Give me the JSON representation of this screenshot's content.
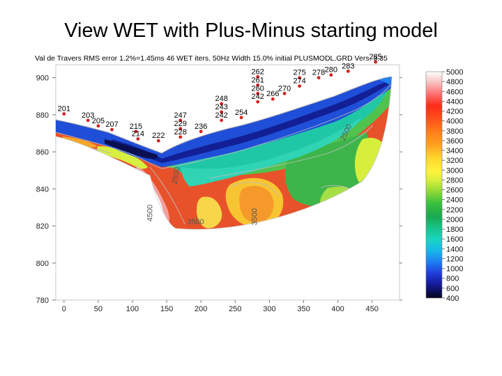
{
  "slide": {
    "title": "View WET with Plus-Minus starting model"
  },
  "chart_data": {
    "type": "heatmap",
    "caption": "Val de Travers RMS error 1.2%=1.45ms 46 WET iters. 50Hz Width 15.0% initial PLUSMODL.GRD Vers. 3.35",
    "x_ticks": [
      0,
      50,
      100,
      150,
      200,
      250,
      300,
      350,
      400,
      450
    ],
    "y_ticks": [
      780,
      800,
      820,
      840,
      860,
      880,
      900
    ],
    "xlim": [
      -12,
      490
    ],
    "ylim": [
      780,
      907
    ],
    "colorbar": {
      "min": 400,
      "max": 5000,
      "ticks": [
        5000,
        4800,
        4600,
        4400,
        4200,
        4000,
        3800,
        3600,
        3400,
        3200,
        3000,
        2800,
        2600,
        2400,
        2200,
        2000,
        1800,
        1600,
        1400,
        1200,
        1000,
        800,
        600,
        400
      ]
    },
    "contour_labels": [
      {
        "text": "2500",
        "x": 167,
        "y": 847,
        "rotate": -80
      },
      {
        "text": "4500",
        "x": 129,
        "y": 827,
        "rotate": -90
      },
      {
        "text": "3500",
        "x": 192,
        "y": 821,
        "rotate": 0
      },
      {
        "text": "3500",
        "x": 282,
        "y": 825,
        "rotate": -90
      },
      {
        "text": "2500",
        "x": 415,
        "y": 870,
        "rotate": -65
      }
    ],
    "receivers": [
      {
        "x": 0,
        "y": 882,
        "label": "201"
      },
      {
        "x": 35,
        "y": 878.5,
        "label": "203"
      },
      {
        "x": 50,
        "y": 875.5,
        "label": "205"
      },
      {
        "x": 70,
        "y": 873.5,
        "label": "207"
      },
      {
        "x": 105,
        "y": 872.5,
        "label": "215"
      },
      {
        "x": 108,
        "y": 868.5,
        "label": "214"
      },
      {
        "x": 138,
        "y": 867.5,
        "label": "222"
      },
      {
        "x": 170,
        "y": 878.5,
        "label": "247"
      },
      {
        "x": 170,
        "y": 874,
        "label": "229"
      },
      {
        "x": 170,
        "y": 869.5,
        "label": "228"
      },
      {
        "x": 200,
        "y": 872.5,
        "label": "236"
      },
      {
        "x": 230,
        "y": 887.5,
        "label": "248"
      },
      {
        "x": 230,
        "y": 883,
        "label": "243"
      },
      {
        "x": 230,
        "y": 878.5,
        "label": "242"
      },
      {
        "x": 259,
        "y": 880,
        "label": "254"
      },
      {
        "x": 283,
        "y": 902,
        "label": "262"
      },
      {
        "x": 283,
        "y": 897.5,
        "label": "261"
      },
      {
        "x": 283,
        "y": 893,
        "label": "260"
      },
      {
        "x": 283,
        "y": 888.5,
        "label": "242"
      },
      {
        "x": 305,
        "y": 890,
        "label": "266"
      },
      {
        "x": 322,
        "y": 893,
        "label": "270"
      },
      {
        "x": 344,
        "y": 901.5,
        "label": "275"
      },
      {
        "x": 344,
        "y": 897,
        "label": "274"
      },
      {
        "x": 372,
        "y": 901.5,
        "label": "278"
      },
      {
        "x": 390,
        "y": 903,
        "label": "280"
      },
      {
        "x": 415,
        "y": 905,
        "label": "283"
      },
      {
        "x": 455,
        "y": 910,
        "label": "285"
      }
    ]
  }
}
